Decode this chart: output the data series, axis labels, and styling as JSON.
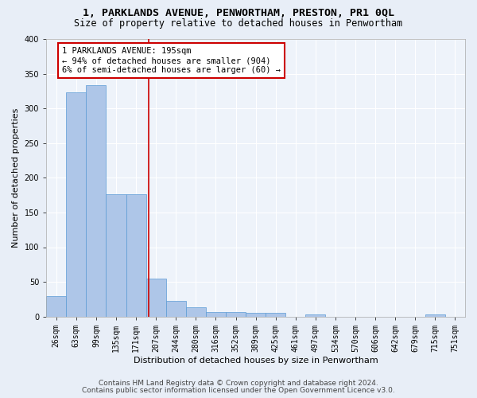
{
  "title": "1, PARKLANDS AVENUE, PENWORTHAM, PRESTON, PR1 0QL",
  "subtitle": "Size of property relative to detached houses in Penwortham",
  "xlabel": "Distribution of detached houses by size in Penwortham",
  "ylabel": "Number of detached properties",
  "categories": [
    "26sqm",
    "63sqm",
    "99sqm",
    "135sqm",
    "171sqm",
    "207sqm",
    "244sqm",
    "280sqm",
    "316sqm",
    "352sqm",
    "389sqm",
    "425sqm",
    "461sqm",
    "497sqm",
    "534sqm",
    "570sqm",
    "606sqm",
    "642sqm",
    "679sqm",
    "715sqm",
    "751sqm"
  ],
  "values": [
    30,
    323,
    334,
    176,
    176,
    55,
    22,
    13,
    6,
    6,
    5,
    5,
    0,
    3,
    0,
    0,
    0,
    0,
    0,
    3,
    0
  ],
  "bar_color": "#aec6e8",
  "bar_edge_color": "#5b9bd5",
  "annotation_text": "1 PARKLANDS AVENUE: 195sqm\n← 94% of detached houses are smaller (904)\n6% of semi-detached houses are larger (60) →",
  "annotation_box_color": "#ffffff",
  "annotation_box_edge_color": "#cc0000",
  "vline_color": "#cc0000",
  "footer_line1": "Contains HM Land Registry data © Crown copyright and database right 2024.",
  "footer_line2": "Contains public sector information licensed under the Open Government Licence v3.0.",
  "ylim": [
    0,
    400
  ],
  "yticks": [
    0,
    50,
    100,
    150,
    200,
    250,
    300,
    350,
    400
  ],
  "bg_color": "#e8eef7",
  "plot_bg_color": "#eef3fa",
  "grid_color": "#ffffff",
  "title_fontsize": 9.5,
  "subtitle_fontsize": 8.5,
  "axis_label_fontsize": 8,
  "tick_fontsize": 7,
  "footer_fontsize": 6.5,
  "annotation_fontsize": 7.5,
  "vline_x_index": 4.62
}
